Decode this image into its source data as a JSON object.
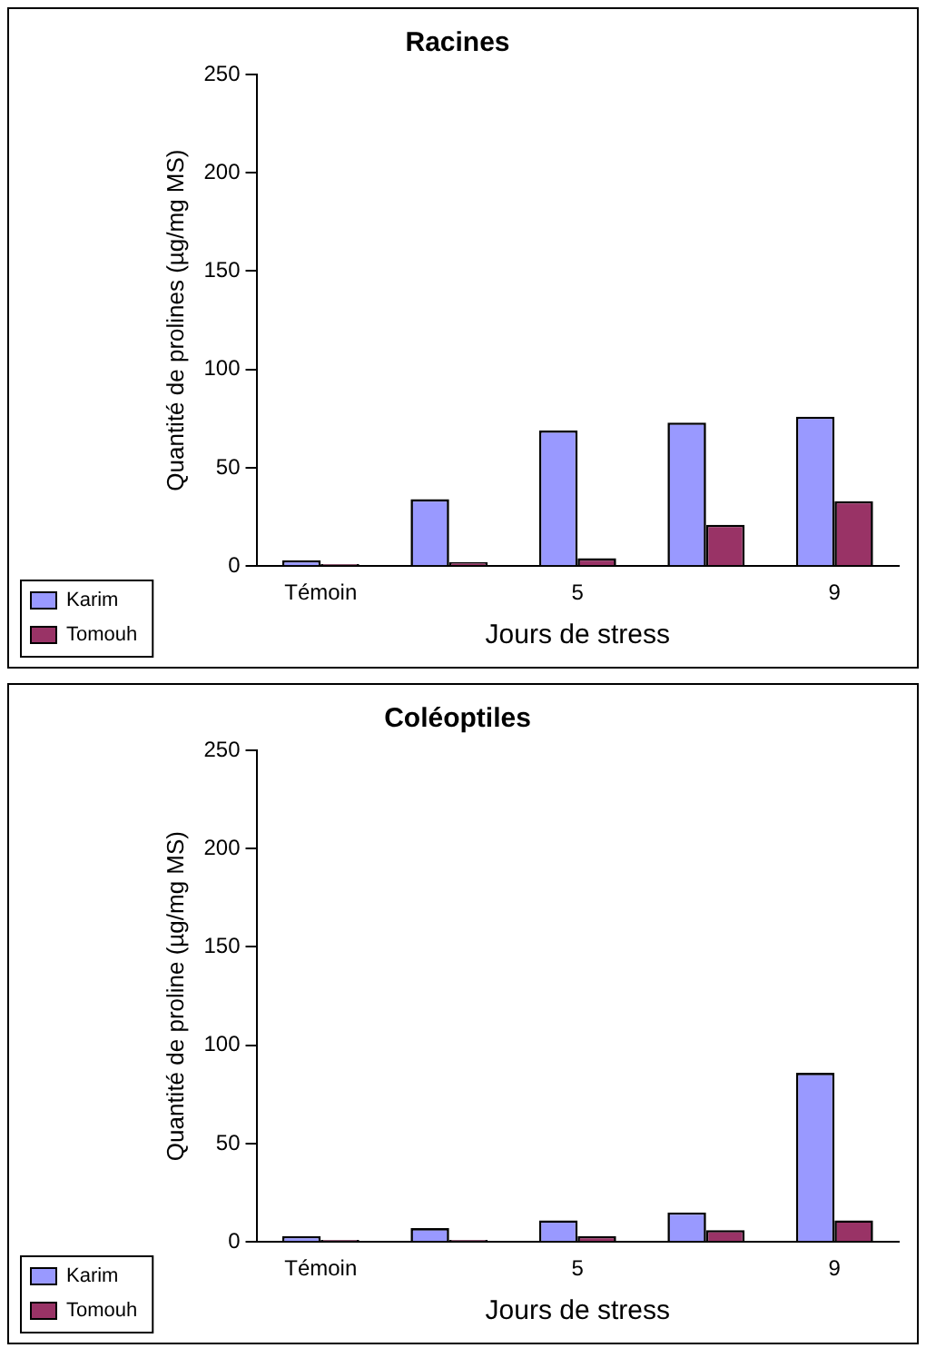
{
  "chart_data": [
    {
      "type": "bar",
      "title": "Racines",
      "xlabel": "Jours de stress",
      "ylabel": "Quantité de prolines (µg/mg MS)",
      "categories": [
        "Témoin",
        null,
        "5",
        null,
        "9"
      ],
      "series": [
        {
          "name": "Karim",
          "color": "#9999ff",
          "values": [
            3,
            34,
            69,
            73,
            76
          ]
        },
        {
          "name": "Tomouh",
          "color": "#993366",
          "values": [
            1,
            2,
            4,
            21,
            33
          ]
        }
      ],
      "ylim": [
        0,
        250
      ],
      "yticks": [
        0,
        50,
        100,
        150,
        200,
        250
      ],
      "grid": false,
      "legend": "bottom left"
    },
    {
      "type": "bar",
      "title": "Coléoptiles",
      "xlabel": "Jours de stress",
      "ylabel": "Quantité de proline (µg/mg MS)",
      "categories": [
        "Témoin",
        null,
        "5",
        null,
        "9"
      ],
      "series": [
        {
          "name": "Karim",
          "color": "#9999ff",
          "values": [
            3,
            7,
            11,
            15,
            86
          ]
        },
        {
          "name": "Tomouh",
          "color": "#993366",
          "values": [
            1,
            1,
            3,
            6,
            11
          ]
        }
      ],
      "ylim": [
        0,
        250
      ],
      "yticks": [
        0,
        50,
        100,
        150,
        200,
        250
      ],
      "grid": false,
      "legend": "bottom left"
    }
  ]
}
